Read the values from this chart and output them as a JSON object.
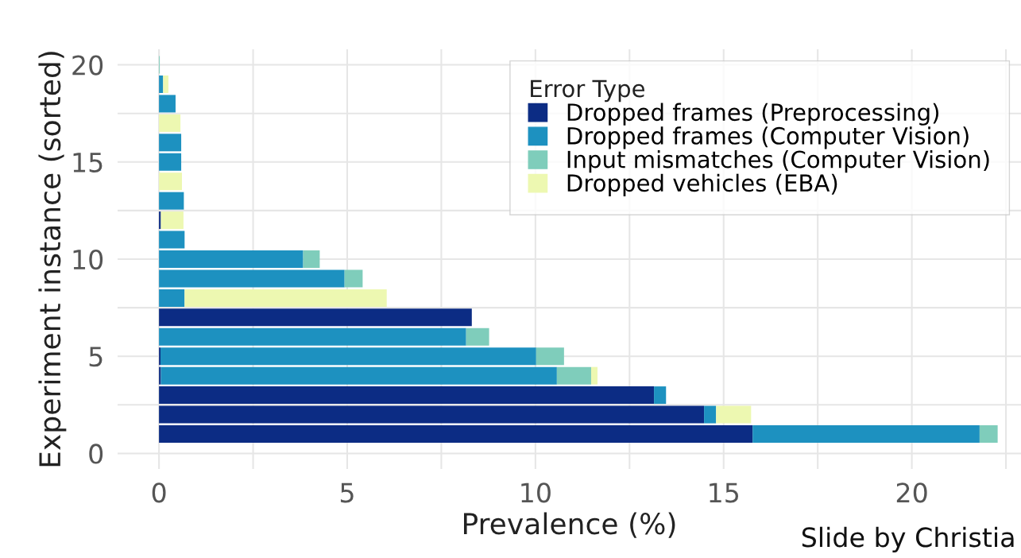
{
  "chart_data": {
    "type": "bar",
    "orientation": "horizontal",
    "stacked": true,
    "xlabel": "Prevalence (%)",
    "ylabel": "Experiment instance (sorted)",
    "legend_title": "Error Type",
    "x": [
      1,
      2,
      3,
      4,
      5,
      6,
      7,
      8,
      9,
      10,
      11,
      12,
      13,
      14,
      15,
      16,
      17,
      18,
      19,
      20
    ],
    "series": [
      {
        "name": "Dropped frames (Preprocessing)",
        "color": "#0c2c84",
        "values": [
          15.77,
          14.48,
          13.15,
          0.05,
          0.04,
          0,
          8.31,
          0,
          0,
          0,
          0,
          0.05,
          0,
          0,
          0,
          0,
          0,
          0,
          0,
          0
        ]
      },
      {
        "name": "Dropped frames (Computer Vision)",
        "color": "#1d91c0",
        "values": [
          6.03,
          0.32,
          0.32,
          10.52,
          9.98,
          8.16,
          0,
          0.68,
          4.93,
          3.83,
          0.68,
          0,
          0.66,
          0,
          0.59,
          0.59,
          0,
          0.44,
          0.11,
          0
        ]
      },
      {
        "name": "Input mismatches (Computer Vision)",
        "color": "#7fcdbb",
        "values": [
          0.48,
          0,
          0,
          0.91,
          0.74,
          0.61,
          0,
          0,
          0.48,
          0.44,
          0,
          0,
          0,
          0,
          0,
          0,
          0,
          0,
          0,
          0.02
        ]
      },
      {
        "name": "Dropped vehicles (EBA)",
        "color": "#edf8b1",
        "values": [
          0,
          0.93,
          0,
          0.17,
          0,
          0,
          0,
          5.37,
          0,
          0,
          0,
          0.6,
          0,
          0.61,
          0,
          0,
          0.57,
          0,
          0.14,
          0
        ]
      }
    ],
    "xlim": [
      -1.1,
      22.9
    ],
    "ylim": [
      -0.8,
      20.8
    ],
    "xticks": [
      0,
      {
        "value": 2.5,
        "label": null
      },
      5,
      {
        "value": 7.5,
        "label": null
      },
      10,
      {
        "value": 12.5,
        "label": null
      },
      15,
      {
        "value": 17.5,
        "label": null
      },
      20,
      {
        "value": 22.5,
        "label": null
      }
    ],
    "yticks": [
      0,
      {
        "value": 2.5,
        "label": null
      },
      5,
      {
        "value": 7.5,
        "label": null
      },
      10,
      {
        "value": 12.5,
        "label": null
      },
      15,
      {
        "value": 17.5,
        "label": null
      },
      20
    ],
    "grid": true,
    "legend": "top right",
    "annotations": [
      "Slide by Christia"
    ]
  }
}
